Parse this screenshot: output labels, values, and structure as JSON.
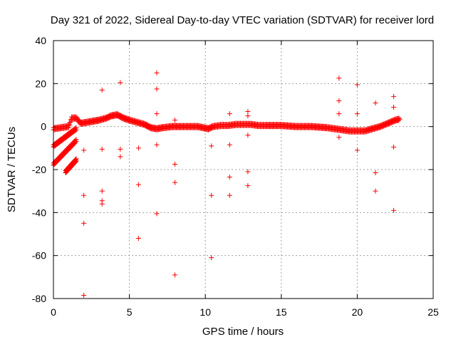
{
  "chart_data": {
    "type": "scatter",
    "title": "Day 321 of 2022, Sidereal Day-to-day VTEC variation (SDTVAR) for receiver lord",
    "xlabel": "GPS time / hours",
    "ylabel": "SDTVAR / TECUs",
    "xlim": [
      0,
      25
    ],
    "ylim": [
      -80,
      40
    ],
    "xticks": [
      0,
      5,
      10,
      15,
      20,
      25
    ],
    "yticks": [
      -80,
      -60,
      -40,
      -20,
      0,
      20,
      40
    ],
    "grid": true,
    "marker": "+",
    "color": "#ff0000",
    "main_trace": [
      [
        0.0,
        -1.0
      ],
      [
        0.5,
        -0.5
      ],
      [
        1.0,
        0.0
      ],
      [
        1.2,
        4.0
      ],
      [
        1.5,
        4.0
      ],
      [
        1.8,
        1.5
      ],
      [
        2.2,
        2.0
      ],
      [
        2.6,
        2.5
      ],
      [
        3.0,
        3.0
      ],
      [
        3.5,
        4.0
      ],
      [
        3.8,
        5.0
      ],
      [
        4.2,
        5.5
      ],
      [
        4.6,
        4.0
      ],
      [
        5.0,
        3.0
      ],
      [
        5.5,
        2.0
      ],
      [
        6.0,
        1.0
      ],
      [
        6.4,
        -0.5
      ],
      [
        6.8,
        -1.0
      ],
      [
        7.2,
        -0.5
      ],
      [
        7.8,
        0.0
      ],
      [
        8.5,
        0.0
      ],
      [
        9.5,
        0.0
      ],
      [
        10.2,
        -1.0
      ],
      [
        10.5,
        0.0
      ],
      [
        11.0,
        0.5
      ],
      [
        11.5,
        0.5
      ],
      [
        12.0,
        1.0
      ],
      [
        12.5,
        1.0
      ],
      [
        13.0,
        1.0
      ],
      [
        13.5,
        0.5
      ],
      [
        14.0,
        0.5
      ],
      [
        15.0,
        0.5
      ],
      [
        16.0,
        0.0
      ],
      [
        17.0,
        0.0
      ],
      [
        18.0,
        -0.5
      ],
      [
        18.5,
        -1.0
      ],
      [
        19.0,
        -1.5
      ],
      [
        19.5,
        -2.0
      ],
      [
        20.0,
        -2.0
      ],
      [
        20.5,
        -2.0
      ],
      [
        21.0,
        -1.0
      ],
      [
        21.5,
        0.0
      ],
      [
        22.0,
        1.5
      ],
      [
        22.5,
        3.0
      ],
      [
        22.8,
        3.5
      ]
    ],
    "diagonal_tracks": [
      {
        "start": [
          0.0,
          -9.0
        ],
        "end": [
          1.5,
          -1.0
        ]
      },
      {
        "start": [
          0.0,
          -17.5
        ],
        "end": [
          1.5,
          -6.5
        ]
      },
      {
        "start": [
          0.8,
          -21.0
        ],
        "end": [
          1.5,
          -15.5
        ]
      }
    ],
    "outliers": [
      [
        2.0,
        -11.0
      ],
      [
        2.0,
        -32.0
      ],
      [
        2.0,
        -45.0
      ],
      [
        2.0,
        -78.5
      ],
      [
        3.2,
        17.0
      ],
      [
        3.2,
        -10.5
      ],
      [
        3.2,
        -30.0
      ],
      [
        3.2,
        -34.5
      ],
      [
        3.2,
        -36.0
      ],
      [
        4.4,
        20.5
      ],
      [
        4.4,
        -10.5
      ],
      [
        4.4,
        -14.0
      ],
      [
        5.6,
        -10.0
      ],
      [
        5.6,
        -27.0
      ],
      [
        5.6,
        -52.0
      ],
      [
        6.8,
        25.0
      ],
      [
        6.8,
        17.5
      ],
      [
        6.8,
        6.0
      ],
      [
        6.8,
        -8.5
      ],
      [
        6.8,
        -40.5
      ],
      [
        8.0,
        3.0
      ],
      [
        8.0,
        -17.5
      ],
      [
        8.0,
        -26.0
      ],
      [
        8.0,
        -69.0
      ],
      [
        10.4,
        -9.0
      ],
      [
        10.4,
        -32.0
      ],
      [
        10.4,
        -61.0
      ],
      [
        11.6,
        6.0
      ],
      [
        11.6,
        -8.5
      ],
      [
        11.6,
        -23.5
      ],
      [
        11.6,
        -32.0
      ],
      [
        12.8,
        7.0
      ],
      [
        12.8,
        5.0
      ],
      [
        12.8,
        -4.0
      ],
      [
        12.8,
        -21.0
      ],
      [
        12.8,
        -27.5
      ],
      [
        18.8,
        22.5
      ],
      [
        18.8,
        12.0
      ],
      [
        18.8,
        6.0
      ],
      [
        18.8,
        -5.0
      ],
      [
        20.0,
        19.5
      ],
      [
        20.0,
        6.0
      ],
      [
        20.0,
        -11.0
      ],
      [
        21.2,
        11.0
      ],
      [
        21.2,
        -21.5
      ],
      [
        21.2,
        -30.0
      ],
      [
        22.4,
        14.0
      ],
      [
        22.4,
        9.0
      ],
      [
        22.4,
        -9.5
      ],
      [
        22.4,
        -39.0
      ]
    ]
  }
}
